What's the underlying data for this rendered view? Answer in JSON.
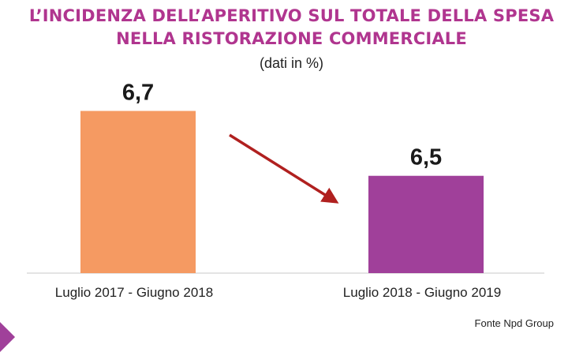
{
  "title_line1": "L’INCIDENZA DELL’APERITIVO SUL TOTALE DELLA SPESA",
  "title_line2": "NELLA RISTORAZIONE COMMERCIALE",
  "subtitle": "(dati in %)",
  "source": "Fonte Npd Group",
  "colors": {
    "title": "#b0358f",
    "arrow": "#b0201f",
    "bar1": "#f59a62",
    "bar2": "#a0409a"
  },
  "chart_data": {
    "type": "bar",
    "categories": [
      "Luglio 2017 - Giugno 2018",
      "Luglio 2018 - Giugno 2019"
    ],
    "values": [
      6.7,
      6.5
    ],
    "value_labels": [
      "6,7",
      "6,5"
    ],
    "colors": [
      "#f59a62",
      "#a0409a"
    ],
    "ylim": [
      6.2,
      6.75
    ],
    "grid": false,
    "annotations": [
      "downward arrow from first bar to second bar"
    ]
  }
}
